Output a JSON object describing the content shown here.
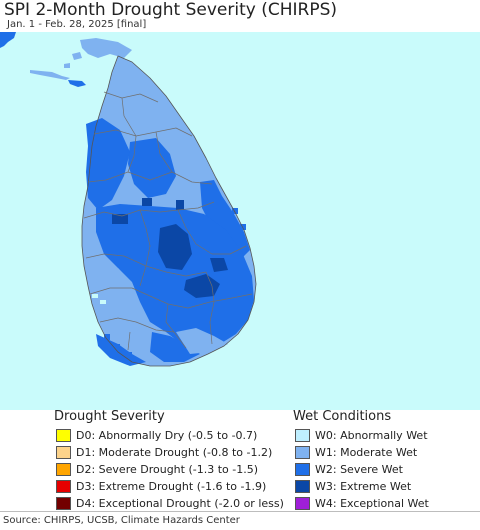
{
  "header": {
    "title": "SPI 2-Month Drought Severity (CHIRPS)",
    "subtitle": "Jan. 1 - Feb. 28, 2025 [final]"
  },
  "map": {
    "ocean_color": "#c9fbfb",
    "outside_color": "#ffffff",
    "land_colors": {
      "W1": "#7fb2f0",
      "W2": "#1f6fe8",
      "W3": "#0b47a6"
    }
  },
  "legend": {
    "drought": {
      "title": "Drought Severity",
      "items": [
        {
          "code": "D0",
          "label": "D0: Abnormally Dry (-0.5 to -0.7)",
          "color": "#ffff00"
        },
        {
          "code": "D1",
          "label": "D1: Moderate Drought (-0.8 to -1.2)",
          "color": "#fcd38b"
        },
        {
          "code": "D2",
          "label": "D2: Severe Drought (-1.3 to -1.5)",
          "color": "#ffa500"
        },
        {
          "code": "D3",
          "label": "D3: Extreme Drought (-1.6 to -1.9)",
          "color": "#e60000"
        },
        {
          "code": "D4",
          "label": "D4: Exceptional Drought (-2.0 or less)",
          "color": "#730000"
        }
      ]
    },
    "wet": {
      "title": "Wet Conditions",
      "items": [
        {
          "code": "W0",
          "label": "W0: Abnormally Wet",
          "color": "#bfefff"
        },
        {
          "code": "W1",
          "label": "W1: Moderate Wet",
          "color": "#7fb2f0"
        },
        {
          "code": "W2",
          "label": "W2: Severe Wet",
          "color": "#1f6fe8"
        },
        {
          "code": "W3",
          "label": "W3: Extreme Wet",
          "color": "#0b47a6"
        },
        {
          "code": "W4",
          "label": "W4: Exceptional Wet",
          "color": "#9f1fd8"
        }
      ]
    }
  },
  "footer": {
    "source": "Source: CHIRPS, UCSB, Climate Hazards Center"
  }
}
